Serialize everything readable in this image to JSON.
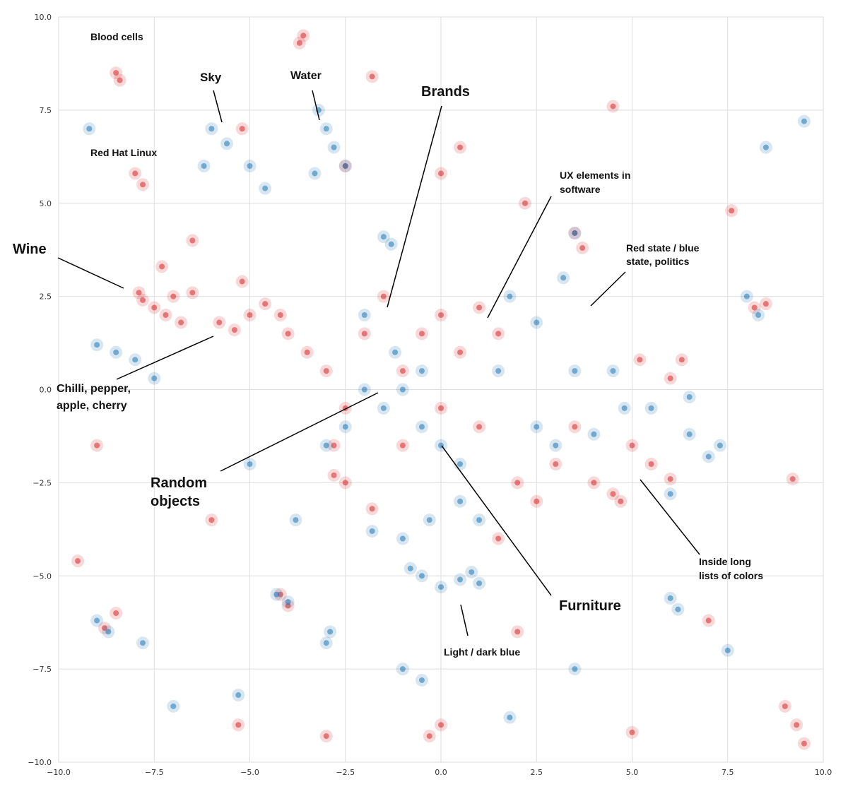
{
  "chart_data": {
    "type": "scatter",
    "xlim": [
      -10,
      10
    ],
    "ylim": [
      -10,
      10
    ],
    "xticks": [
      {
        "value": -10,
        "label": "−10.0"
      },
      {
        "value": -7.5,
        "label": "−7.5"
      },
      {
        "value": -5,
        "label": "−5.0"
      },
      {
        "value": -2.5,
        "label": "−2.5"
      },
      {
        "value": 0,
        "label": "0.0"
      },
      {
        "value": 2.5,
        "label": "2.5"
      },
      {
        "value": 5,
        "label": "5.0"
      },
      {
        "value": 7.5,
        "label": "7.5"
      },
      {
        "value": 10,
        "label": "10.0"
      }
    ],
    "yticks": [
      {
        "value": -10,
        "label": "−10.0"
      },
      {
        "value": -7.5,
        "label": "−7.5"
      },
      {
        "value": -5,
        "label": "−5.0"
      },
      {
        "value": -2.5,
        "label": "−2.5"
      },
      {
        "value": 0,
        "label": "0.0"
      },
      {
        "value": 2.5,
        "label": "2.5"
      },
      {
        "value": 5,
        "label": "5.0"
      },
      {
        "value": 7.5,
        "label": "7.5"
      },
      {
        "value": 10,
        "label": "10.0"
      }
    ],
    "grid": true,
    "annotations": [
      [
        "Blood cells"
      ],
      [
        "Sky"
      ],
      [
        "Water"
      ],
      [
        "Brands"
      ],
      [
        "Red Hat Linux"
      ],
      [
        "UX elements in",
        "software"
      ],
      [
        "Red state / blue",
        "state, politics"
      ],
      [
        "Wine"
      ],
      [
        "Chilli, pepper,",
        "apple, cherry"
      ],
      [
        "Random",
        "objects"
      ],
      [
        "Furniture"
      ],
      [
        "Inside long",
        "lists of colors"
      ],
      [
        "Light / dark blue"
      ]
    ],
    "series": [
      {
        "color": "#d62728",
        "x": [
          -7.8,
          -7.5,
          -7.2,
          -7.0,
          -7.9,
          -6.8,
          -7.3,
          -6.5,
          -5.8,
          -5.4,
          -5.0,
          -4.6,
          -4.2,
          -5.2,
          -4.0,
          -3.5,
          -3.0,
          -2.5,
          -2.0,
          -1.5,
          -1.0,
          -0.5,
          0,
          0.5,
          1.0,
          1.5,
          -2.8,
          -2.5,
          -2.8,
          -1.8,
          -1.0,
          0.0,
          1.0,
          2.0,
          2.5,
          1.5,
          3.0,
          4.0,
          4.5,
          5.0,
          5.5,
          6.0,
          4.7,
          3.5,
          5.2,
          6.0,
          6.3,
          -8.5,
          -8.4,
          -8.0,
          -7.8,
          -3.6,
          -3.7,
          -5.2,
          -1.8,
          -2.5,
          0.5,
          0.0,
          2.2,
          3.5,
          3.7,
          8.5,
          8.2,
          9.5,
          9.3,
          9.0,
          0.0,
          -0.3,
          -5.3,
          -4.0,
          -4.2,
          -9.0,
          -8.8,
          -8.5,
          7.0,
          9.2,
          5.0,
          -3.0,
          4.5,
          -6.0,
          -6.5,
          -9.5,
          2.0,
          7.6
        ],
        "y": [
          2.4,
          2.2,
          2.0,
          2.5,
          2.6,
          1.8,
          3.3,
          2.6,
          1.8,
          1.6,
          2.0,
          2.3,
          2.0,
          2.9,
          1.5,
          1.0,
          0.5,
          -0.5,
          1.5,
          2.5,
          0.5,
          1.5,
          2.0,
          1.0,
          2.2,
          1.5,
          -1.5,
          -2.5,
          -2.3,
          -3.2,
          -1.5,
          -0.5,
          -1.0,
          -2.5,
          -3.0,
          -4.0,
          -2.0,
          -2.5,
          -2.8,
          -1.5,
          -2.0,
          -2.4,
          -3.0,
          -1.0,
          0.8,
          0.3,
          0.8,
          8.5,
          8.3,
          5.8,
          5.5,
          9.5,
          9.3,
          7.0,
          8.4,
          6.0,
          6.5,
          5.8,
          5.0,
          4.2,
          3.8,
          2.3,
          2.2,
          -9.5,
          -9.0,
          -8.5,
          -9.0,
          -9.3,
          -9.0,
          -5.8,
          -5.5,
          -1.5,
          -6.4,
          -6.0,
          -6.2,
          -2.4,
          -9.2,
          -9.3,
          7.6,
          -3.5,
          4.0,
          -4.6,
          -6.5,
          4.8
        ]
      },
      {
        "color": "#1f77b4",
        "x": [
          -6.0,
          -5.6,
          -5.0,
          -4.6,
          -6.2,
          -3.2,
          -3.0,
          -2.8,
          -2.5,
          -3.3,
          -1.5,
          -1.3,
          -8.5,
          -8.0,
          -9.0,
          -7.5,
          -2.0,
          -1.5,
          -1.0,
          -0.5,
          0.0,
          -1.2,
          -0.5,
          0.5,
          -0.3,
          0.5,
          1.0,
          -1.0,
          -1.8,
          -2.5,
          -3.0,
          -2.0,
          1.5,
          2.5,
          -0.5,
          0.0,
          0.5,
          -0.8,
          0.8,
          1.0,
          2.5,
          3.0,
          4.0,
          4.8,
          6.5,
          7.0,
          7.3,
          6.0,
          5.5,
          6.5,
          4.5,
          3.5,
          3.5,
          3.2,
          8.0,
          8.3,
          9.5,
          -9.2,
          -8.7,
          -9.0,
          -2.9,
          -3.0,
          -4.0,
          -4.3,
          6.0,
          6.2,
          -5.3,
          -7.0,
          1.8,
          -1.0,
          -0.5,
          3.5,
          8.5,
          7.5,
          -7.8,
          -3.8,
          -5.0,
          1.8
        ],
        "y": [
          7.0,
          6.6,
          6.0,
          5.4,
          6.0,
          7.5,
          7.0,
          6.5,
          6.0,
          5.8,
          4.1,
          3.9,
          1.0,
          0.8,
          1.2,
          0.3,
          0.0,
          -0.5,
          0.0,
          -1.0,
          -1.5,
          1.0,
          0.5,
          -2.0,
          -3.5,
          -3.0,
          -3.5,
          -4.0,
          -3.8,
          -1.0,
          -1.5,
          2.0,
          0.5,
          1.8,
          -5.0,
          -5.3,
          -5.1,
          -4.8,
          -4.9,
          -5.2,
          -1.0,
          -1.5,
          -1.2,
          -0.5,
          -1.2,
          -1.8,
          -1.5,
          -2.8,
          -0.5,
          -0.2,
          0.5,
          0.5,
          4.2,
          3.0,
          2.5,
          2.0,
          7.2,
          7.0,
          -6.5,
          -6.2,
          -6.5,
          -6.8,
          -5.7,
          -5.5,
          -5.6,
          -5.9,
          -8.2,
          -8.5,
          -8.8,
          -7.5,
          -7.8,
          -7.5,
          6.5,
          -7.0,
          -6.8,
          -3.5,
          -2.0,
          2.5
        ]
      }
    ]
  }
}
